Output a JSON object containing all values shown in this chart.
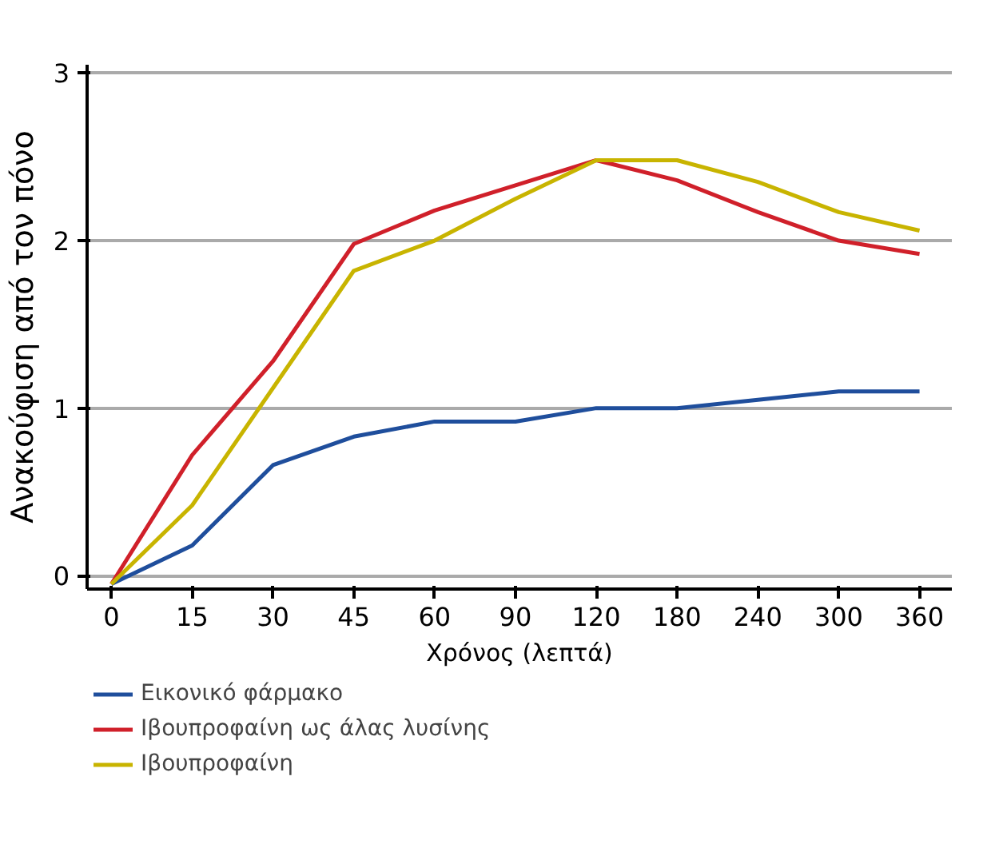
{
  "chart_data": {
    "type": "line",
    "xlabel": "Χρόνος (λεπτά)",
    "ylabel": "Ανακούφιση από τον πόνο",
    "categories": [
      "0",
      "15",
      "30",
      "45",
      "60",
      "90",
      "120",
      "180",
      "240",
      "300",
      "360"
    ],
    "series": [
      {
        "name": "Εικονικό φάρμακο",
        "color": "#1f4e9c",
        "values": [
          -0.05,
          0.18,
          0.66,
          0.83,
          0.92,
          0.92,
          1.0,
          1.0,
          1.05,
          1.1,
          1.1
        ]
      },
      {
        "name": "Ιβουπροφαίνη ως άλας λυσίνης",
        "color": "#d0202a",
        "values": [
          -0.05,
          0.72,
          1.28,
          1.98,
          2.18,
          2.33,
          2.48,
          2.36,
          2.17,
          2.0,
          1.92
        ]
      },
      {
        "name": "Ιβουπροφαίνη",
        "color": "#c8b400",
        "values": [
          -0.05,
          0.42,
          1.12,
          1.82,
          2.0,
          2.25,
          2.48,
          2.48,
          2.35,
          2.17,
          2.06
        ]
      }
    ],
    "ylim": [
      -0.08,
      3.05
    ],
    "yticks": [
      0,
      1,
      2,
      3
    ],
    "grid": "y",
    "legend": "bottom",
    "line_style": "solid"
  }
}
